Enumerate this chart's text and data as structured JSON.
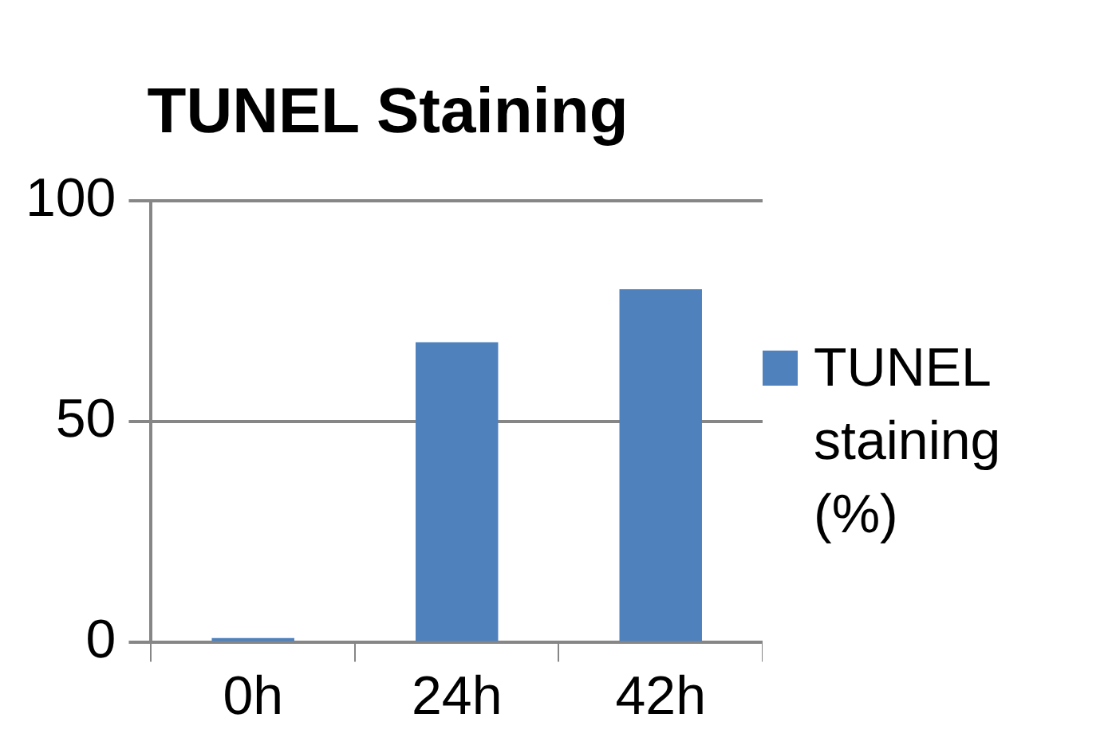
{
  "chart_data": {
    "type": "bar",
    "title": "TUNEL Staining",
    "categories": [
      "0h",
      "24h",
      "42h"
    ],
    "series": [
      {
        "name": "TUNEL staining (%)",
        "color": "#4f81bd",
        "values": [
          1,
          68,
          80
        ]
      }
    ],
    "ylim": [
      0,
      100
    ],
    "yticks": [
      0,
      50,
      100
    ],
    "grid": "y",
    "legend": "right"
  }
}
